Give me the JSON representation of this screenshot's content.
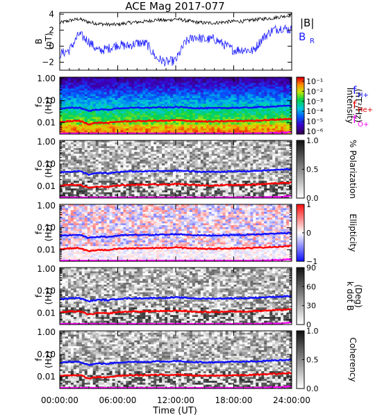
{
  "title": "ACE Mag 2017-077",
  "xaxis": {
    "label": "Time (UT)",
    "ticks": [
      "00:00:00",
      "06:00:00",
      "12:00:00",
      "18:00:00",
      "24:00:00"
    ],
    "range_hours": [
      0,
      24
    ]
  },
  "freq_ticks": [
    "1.00",
    "0.10",
    "0.01"
  ],
  "freq_ylabel": [
    "f",
    "(Hz)"
  ],
  "line_colors": {
    "B_total": "#000000",
    "B_R": "#1a1aff",
    "f_H_plus": "#1010ff",
    "f_He_plus": "#ff0000",
    "f_O_plus": "#ff00ff"
  },
  "gyro_legend": [
    {
      "label": "f",
      "sub": "H+",
      "color": "#1010ff"
    },
    {
      "label": "f",
      "sub": "He+",
      "color": "#e00000"
    },
    {
      "label": "f",
      "sub": "O+",
      "color": "#ff00ff"
    }
  ],
  "chart_data": [
    {
      "type": "line",
      "name": "field",
      "ylabel": [
        "B",
        "(nT)"
      ],
      "ylim": [
        -3,
        4.2
      ],
      "yticks": [
        4,
        2,
        0,
        -2
      ],
      "legend": [
        {
          "label": "|B|",
          "sub": "",
          "color": "#000000"
        },
        {
          "label": "B",
          "sub": "R",
          "color": "#1a1aff"
        }
      ],
      "x_hours": [
        0,
        1,
        2,
        3,
        4,
        5,
        6,
        7,
        8,
        9,
        10,
        11,
        12,
        13,
        14,
        15,
        16,
        17,
        18,
        19,
        20,
        21,
        22,
        23,
        24
      ],
      "series": [
        {
          "name": "|B|",
          "values": [
            2.9,
            3.2,
            3.4,
            3.0,
            2.8,
            2.7,
            2.7,
            2.9,
            3.0,
            3.1,
            3.3,
            3.2,
            3.4,
            3.2,
            3.0,
            2.9,
            2.9,
            3.0,
            3.1,
            3.1,
            3.3,
            3.4,
            3.5,
            3.7,
            3.9
          ]
        },
        {
          "name": "B_R",
          "values": [
            -1.0,
            -0.5,
            1.5,
            0.6,
            -0.6,
            -0.3,
            0.2,
            0.0,
            0.4,
            0.3,
            -1.5,
            -2.0,
            -1.8,
            0.5,
            1.2,
            0.8,
            0.9,
            0.2,
            -0.5,
            -0.4,
            -0.6,
            1.0,
            2.0,
            2.3,
            2.0
          ]
        }
      ]
    },
    {
      "type": "heatmap",
      "name": "intensity",
      "colorbar_label": [
        "Intensity",
        "(nT²/Hz)"
      ],
      "colorbar_ticks": [
        "10⁻¹",
        "10⁻²",
        "10⁻³",
        "10⁻⁴",
        "10⁻⁵",
        "10⁻⁶"
      ],
      "colorbar_range": [
        -6,
        -0.5
      ],
      "colormap": "rainbow"
    },
    {
      "type": "heatmap",
      "name": "polarization",
      "colorbar_label": [
        "% Polarization"
      ],
      "colorbar_ticks": [
        "1.0",
        "0.5",
        "0.0"
      ],
      "colorbar_range": [
        0,
        1
      ],
      "colormap": "gray"
    },
    {
      "type": "heatmap",
      "name": "ellipticity",
      "colorbar_label": [
        "Ellipticity"
      ],
      "colorbar_ticks": [
        "1",
        "0",
        "−1"
      ],
      "colorbar_range": [
        -1,
        1
      ],
      "colormap": "bwr"
    },
    {
      "type": "heatmap",
      "name": "k_dot_B",
      "colorbar_label": [
        "k dot B",
        "(Deg)"
      ],
      "colorbar_ticks": [
        "90",
        "60",
        "30",
        "0"
      ],
      "colorbar_range": [
        0,
        90
      ],
      "colormap": "gray"
    },
    {
      "type": "heatmap",
      "name": "coherency",
      "colorbar_label": [
        "Coherency"
      ],
      "colorbar_ticks": [
        "1.0",
        "0.5",
        "0.0"
      ],
      "colorbar_range": [
        0,
        1
      ],
      "colormap": "gray"
    }
  ],
  "gyrofrequency_lines": {
    "x_hours": [
      0,
      1,
      2,
      3,
      4,
      5,
      6,
      7,
      8,
      9,
      10,
      11,
      12,
      13,
      14,
      15,
      16,
      17,
      18,
      19,
      20,
      21,
      22,
      23,
      24
    ],
    "f_H_plus_Hz": [
      0.042,
      0.046,
      0.048,
      0.034,
      0.04,
      0.038,
      0.044,
      0.046,
      0.047,
      0.047,
      0.049,
      0.048,
      0.051,
      0.049,
      0.046,
      0.045,
      0.045,
      0.046,
      0.047,
      0.047,
      0.049,
      0.051,
      0.054,
      0.056,
      0.06
    ],
    "f_He_plus_Hz": [
      0.0105,
      0.0116,
      0.012,
      0.0085,
      0.01,
      0.0095,
      0.011,
      0.0115,
      0.0118,
      0.0118,
      0.0122,
      0.012,
      0.0128,
      0.0122,
      0.0115,
      0.0112,
      0.0112,
      0.0115,
      0.0118,
      0.0118,
      0.0122,
      0.0128,
      0.0135,
      0.014,
      0.015
    ],
    "f_O_plus_Hz": [
      0.0026,
      0.0029,
      0.003,
      0.0021,
      0.0025,
      0.0024,
      0.0028,
      0.0029,
      0.003,
      0.003,
      0.0031,
      0.003,
      0.0032,
      0.0031,
      0.0029,
      0.0028,
      0.0028,
      0.0029,
      0.003,
      0.003,
      0.0031,
      0.0032,
      0.0034,
      0.0035,
      0.0037
    ]
  }
}
